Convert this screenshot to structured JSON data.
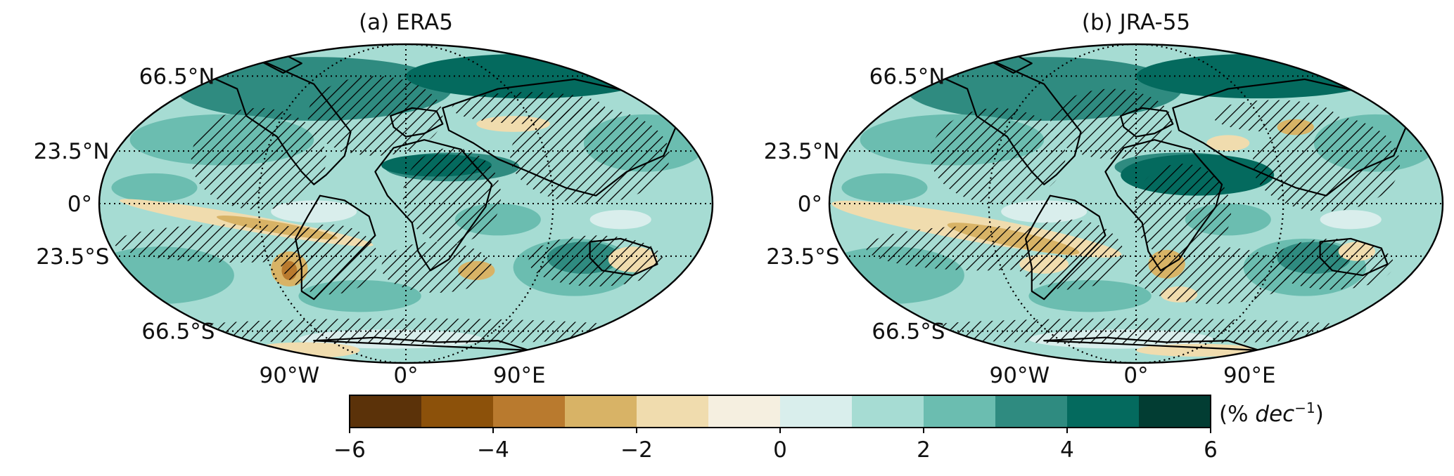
{
  "panels": [
    {
      "id": "era5",
      "title": "(a) ERA5",
      "lat_labels": [
        "66.5°N",
        "23.5°N",
        "0°",
        "23.5°S",
        "66.5°S"
      ],
      "lon_labels": [
        "90°W",
        "0°",
        "90°E"
      ],
      "drying_regions": [
        "tropical-south-pacific",
        "south-america-la-plata",
        "southern-africa",
        "central-asia",
        "northern-australia",
        "antarctic-coast"
      ]
    },
    {
      "id": "jra55",
      "title": "(b) JRA-55",
      "lat_labels": [
        "66.5°N",
        "23.5°N",
        "0°",
        "23.5°S",
        "66.5°S"
      ],
      "lon_labels": [
        "90°W",
        "0°",
        "90°E"
      ],
      "drying_regions": [
        "tropical-south-pacific",
        "south-america",
        "southern-africa",
        "southern-indian-ocean",
        "middle-east",
        "antarctic-coast"
      ]
    }
  ],
  "colorbar": {
    "ticks": [
      "−6",
      "−4",
      "−2",
      "0",
      "2",
      "4",
      "6"
    ],
    "min": -6,
    "max": 6,
    "step": 1,
    "unit_prefix": "(% ",
    "unit_italic": "dec",
    "unit_exp": "−1",
    "unit_suffix": ")",
    "colors": [
      "#5b3209",
      "#8c510a",
      "#b97a2e",
      "#d8b366",
      "#f0dcae",
      "#f5efe0",
      "#d9eeec",
      "#a6dcd3",
      "#6bbdb0",
      "#2f8b80",
      "#046a5e",
      "#023d33"
    ]
  },
  "colors": {
    "ocean_base": "#a6dcd3",
    "wet_moderate": "#6bbdb0",
    "wet_strong": "#2f8b80",
    "wet_extreme": "#046a5e",
    "dry_light": "#f0dcae",
    "dry_moderate": "#d8b366",
    "dry_strong": "#b97a2e",
    "near_zero": "#d9eeec"
  }
}
